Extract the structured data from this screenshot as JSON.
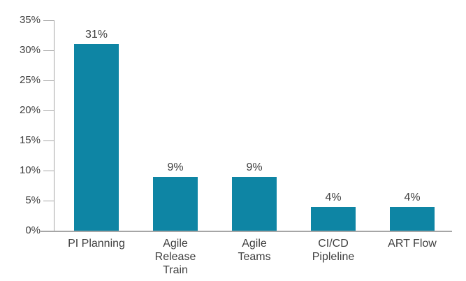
{
  "chart": {
    "bar_color": "#0e85a4",
    "axis_color": "#a6a6a6",
    "text_color": "#3f3f3f",
    "background_color": "#ffffff"
  },
  "chart_data": {
    "type": "bar",
    "title": "",
    "categories": [
      "PI Planning",
      "Agile Release Train",
      "Agile Teams",
      "CI/CD Pipleline",
      "ART Flow"
    ],
    "category_label_lines": [
      [
        "PI Planning"
      ],
      [
        "Agile",
        "Release",
        "Train"
      ],
      [
        "Agile",
        "Teams"
      ],
      [
        "CI/CD",
        "Pipleline"
      ],
      [
        "ART Flow"
      ]
    ],
    "values": [
      31,
      9,
      9,
      4,
      4
    ],
    "data_labels": [
      "31%",
      "9%",
      "9%",
      "4%",
      "4%"
    ],
    "xlabel": "",
    "ylabel": "",
    "ylim": [
      0,
      35
    ],
    "yticks": [
      0,
      5,
      10,
      15,
      20,
      25,
      30,
      35
    ],
    "ytick_labels": [
      "0%",
      "5%",
      "10%",
      "15%",
      "20%",
      "25%",
      "30%",
      "35%"
    ],
    "grid": false,
    "legend": "none"
  }
}
